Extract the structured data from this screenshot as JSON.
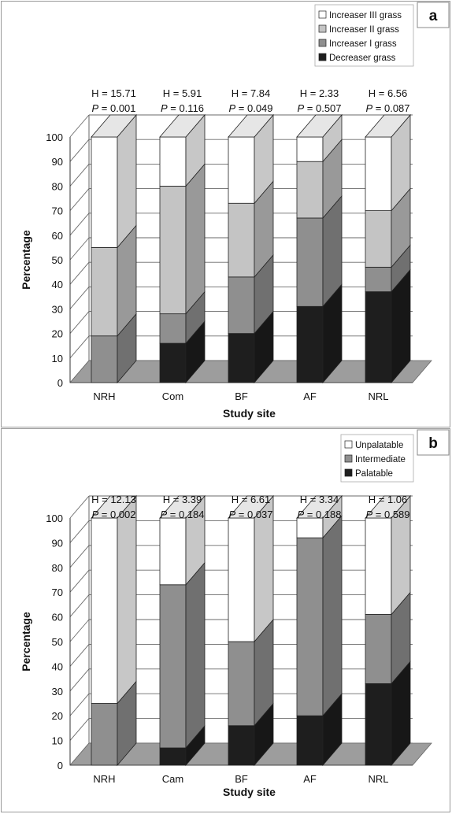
{
  "chart_data": [
    {
      "panel_label": "a",
      "type": "bar",
      "stacked": true,
      "three_d": true,
      "categories": [
        "NRH",
        "Com",
        "BF",
        "AF",
        "NRL"
      ],
      "xlabel": "Study site",
      "ylabel": "Percentage",
      "ylim": [
        0,
        100
      ],
      "yticks": [
        "0",
        "10",
        "20",
        "30",
        "40",
        "50",
        "60",
        "70",
        "80",
        "90",
        "100"
      ],
      "grid": true,
      "legend_position": "top-right",
      "series": [
        {
          "name": "Decreaser grass",
          "values": [
            0,
            16,
            20,
            31,
            37
          ]
        },
        {
          "name": "Increaser I grass",
          "values": [
            19,
            12,
            23,
            36,
            10
          ]
        },
        {
          "name": "Increaser II grass",
          "values": [
            36,
            52,
            30,
            23,
            23
          ]
        },
        {
          "name": "Increaser III grass",
          "values": [
            45,
            20,
            27,
            10,
            30
          ]
        }
      ],
      "stats_h": [
        "H = 15.71",
        "H = 5.91",
        "H = 7.84",
        "H = 2.33",
        "H = 6.56"
      ],
      "stats_p_label": "P",
      "stats_p": [
        "= 0.001",
        "= 0.116",
        "= 0.049",
        "= 0.507",
        "= 0.087"
      ]
    },
    {
      "panel_label": "b",
      "type": "bar",
      "stacked": true,
      "three_d": true,
      "categories": [
        "NRH",
        "Cam",
        "BF",
        "AF",
        "NRL"
      ],
      "xlabel": "Study site",
      "ylabel": "Percentage",
      "ylim": [
        0,
        100
      ],
      "yticks": [
        "0",
        "10",
        "20",
        "30",
        "40",
        "50",
        "60",
        "70",
        "80",
        "90",
        "100"
      ],
      "grid": true,
      "legend_position": "top-right",
      "series": [
        {
          "name": "Palatable",
          "values": [
            0,
            7,
            16,
            20,
            33
          ]
        },
        {
          "name": "Intermediate",
          "values": [
            25,
            66,
            34,
            72,
            28
          ]
        },
        {
          "name": "Unpalatable",
          "values": [
            75,
            27,
            50,
            8,
            39
          ]
        }
      ],
      "stats_h": [
        "H = 12.13",
        "H = 3.39",
        "H = 6.61",
        "H = 3.34",
        "H = 1.06"
      ],
      "stats_p_label": "P",
      "stats_p": [
        "= 0.002",
        "= 0.184",
        "= 0.037",
        "= 0.188",
        "= 0.589"
      ]
    }
  ],
  "colors": {
    "floor": "#9d9d9d",
    "grid": "#6a6a6a",
    "a": [
      "#1e1e1e",
      "#8f8f8f",
      "#c4c4c4",
      "#ffffff"
    ],
    "b": [
      "#1e1e1e",
      "#8f8f8f",
      "#ffffff"
    ]
  }
}
